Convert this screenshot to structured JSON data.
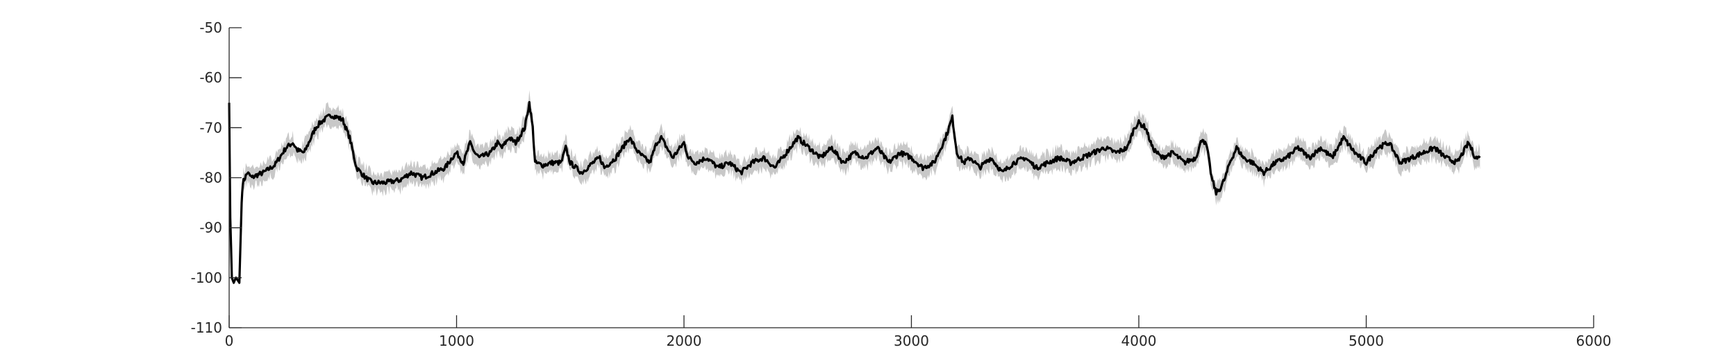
{
  "chart_data": {
    "type": "line",
    "title": "",
    "xlabel": "",
    "ylabel": "",
    "xlim": [
      0,
      6000
    ],
    "ylim": [
      -110,
      -50
    ],
    "xticks": [
      0,
      1000,
      2000,
      3000,
      4000,
      5000,
      6000
    ],
    "yticks": [
      -50,
      -60,
      -70,
      -80,
      -90,
      -100,
      -110
    ],
    "xtick_labels": [
      "0",
      "1000",
      "2000",
      "3000",
      "4000",
      "5000",
      "6000"
    ],
    "ytick_labels": [
      "-50",
      "-60",
      "-70",
      "-80",
      "-90",
      "-100",
      "-110"
    ],
    "grid": false,
    "legend": "none",
    "colors": {
      "line": "#000000",
      "band": "#c8c8c8",
      "axis": "#262626"
    },
    "band_halfwidth": 1.8,
    "series": [
      {
        "x": [
          0,
          5,
          12,
          20,
          30,
          45,
          55,
          60,
          70,
          80,
          100,
          120,
          150,
          200,
          250,
          280,
          300,
          330,
          350,
          380,
          400,
          430,
          450,
          480,
          500,
          530,
          560,
          600,
          630,
          680,
          750,
          800,
          850,
          900,
          950,
          980,
          1000,
          1030,
          1060,
          1080,
          1100,
          1150,
          1180,
          1200,
          1230,
          1260,
          1300,
          1320,
          1335,
          1345,
          1380,
          1420,
          1460,
          1480,
          1500,
          1550,
          1600,
          1630,
          1650,
          1700,
          1760,
          1800,
          1850,
          1880,
          1900,
          1950,
          2000,
          2020,
          2050,
          2100,
          2150,
          2200,
          2250,
          2300,
          2350,
          2400,
          2450,
          2500,
          2550,
          2600,
          2650,
          2700,
          2750,
          2800,
          2850,
          2900,
          2950,
          3000,
          3050,
          3100,
          3150,
          3180,
          3200,
          3230,
          3260,
          3300,
          3350,
          3400,
          3450,
          3500,
          3550,
          3600,
          3650,
          3700,
          3750,
          3800,
          3850,
          3900,
          3950,
          3980,
          4000,
          4030,
          4060,
          4100,
          4150,
          4200,
          4250,
          4280,
          4300,
          4320,
          4340,
          4360,
          4380,
          4400,
          4430,
          4460,
          4500,
          4550,
          4600,
          4650,
          4700,
          4750,
          4800,
          4850,
          4900,
          4950,
          5000,
          5050,
          5100,
          5150,
          5200,
          5250,
          5300,
          5350,
          5400,
          5450,
          5480,
          5500
        ],
        "y": [
          -65,
          -88,
          -100,
          -101,
          -100,
          -101,
          -85,
          -81,
          -80,
          -79,
          -80,
          -79.5,
          -79,
          -77.5,
          -74,
          -73,
          -74.5,
          -75,
          -73,
          -70,
          -69,
          -68,
          -67.5,
          -68,
          -68.5,
          -72,
          -78,
          -80,
          -81,
          -81,
          -80.5,
          -79,
          -80,
          -79,
          -78,
          -76,
          -75,
          -77,
          -73,
          -75,
          -76,
          -75,
          -73,
          -74,
          -72,
          -73,
          -70,
          -65,
          -70,
          -77,
          -77.5,
          -77,
          -77,
          -74,
          -77,
          -79,
          -77,
          -76,
          -78,
          -76,
          -72,
          -75,
          -77,
          -73,
          -72,
          -76,
          -73,
          -76,
          -77,
          -76,
          -78,
          -77,
          -79,
          -77,
          -76,
          -78,
          -75,
          -72,
          -74,
          -76,
          -74,
          -77,
          -75,
          -76,
          -74,
          -77,
          -75,
          -76,
          -78,
          -77,
          -72,
          -68,
          -75,
          -77,
          -76,
          -78,
          -76,
          -79,
          -77,
          -76,
          -78,
          -77,
          -76,
          -77,
          -76,
          -75,
          -74,
          -75,
          -74,
          -70,
          -69,
          -70,
          -74,
          -76,
          -75,
          -77,
          -76,
          -72,
          -74,
          -80,
          -83,
          -82,
          -80,
          -77,
          -74,
          -76,
          -77,
          -79,
          -77,
          -76,
          -74,
          -76,
          -74,
          -76,
          -72,
          -75,
          -77,
          -74,
          -73,
          -77,
          -76,
          -75,
          -74,
          -76,
          -77,
          -73,
          -76,
          -76
        ]
      }
    ]
  }
}
